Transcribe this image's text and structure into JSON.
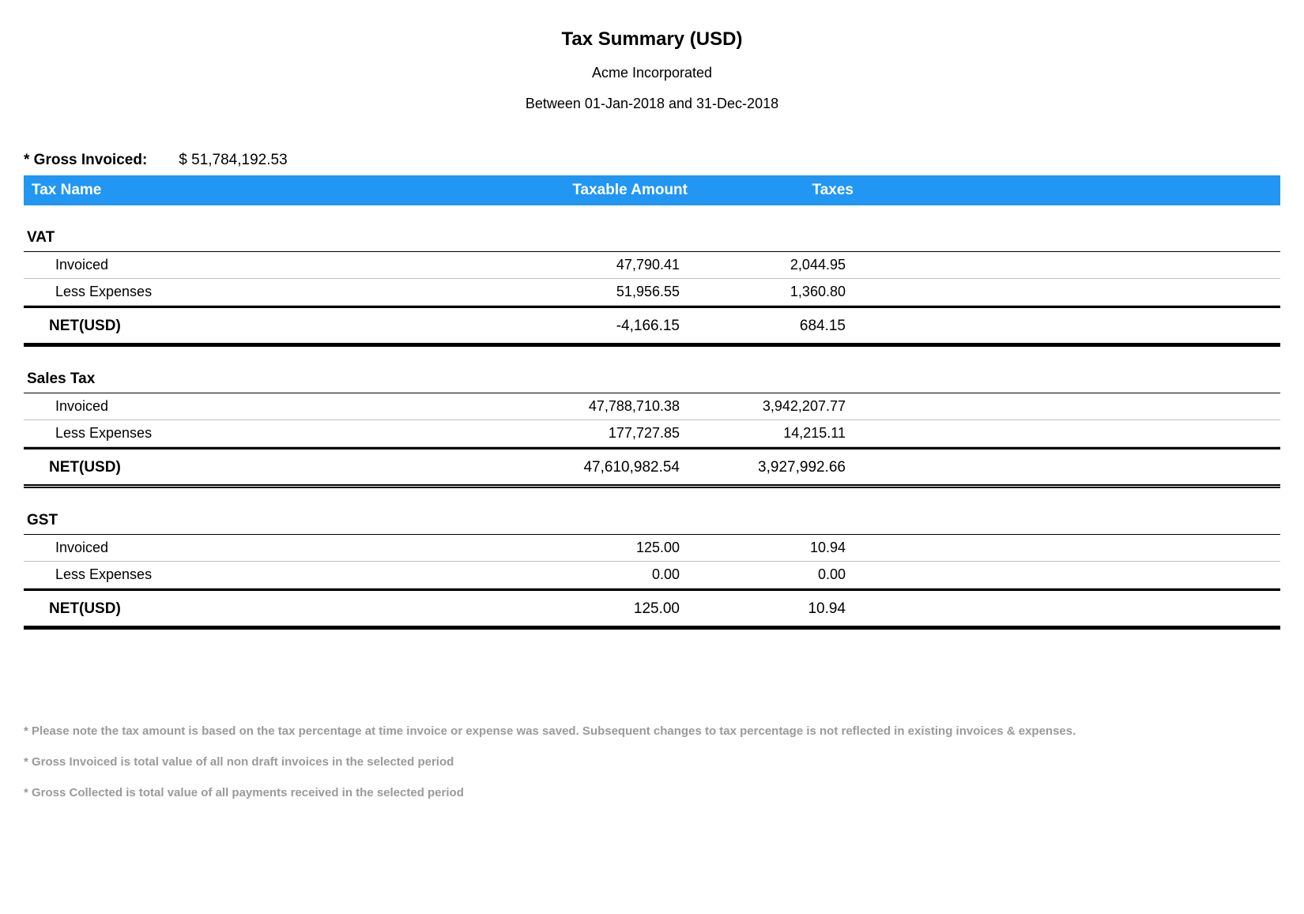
{
  "header": {
    "title": "Tax Summary (USD)",
    "company": "Acme Incorporated",
    "period": "Between 01-Jan-2018 and 31-Dec-2018"
  },
  "gross": {
    "label": "* Gross Invoiced:",
    "value": "$ 51,784,192.53"
  },
  "columns": {
    "tax_name": "Tax Name",
    "taxable_amount": "Taxable Amount",
    "taxes": "Taxes"
  },
  "row_labels": {
    "invoiced": "Invoiced",
    "less_expenses": "Less Expenses",
    "net": "NET(USD)"
  },
  "sections": [
    {
      "title": "VAT",
      "invoiced": {
        "amount": "47,790.41",
        "taxes": "2,044.95"
      },
      "less_expenses": {
        "amount": "51,956.55",
        "taxes": "1,360.80"
      },
      "net": {
        "amount": "-4,166.15",
        "taxes": "684.15"
      },
      "net_style": "solid"
    },
    {
      "title": "Sales Tax",
      "invoiced": {
        "amount": "47,788,710.38",
        "taxes": "3,942,207.77"
      },
      "less_expenses": {
        "amount": "177,727.85",
        "taxes": "14,215.11"
      },
      "net": {
        "amount": "47,610,982.54",
        "taxes": "3,927,992.66"
      },
      "net_style": "double"
    },
    {
      "title": "GST",
      "invoiced": {
        "amount": "125.00",
        "taxes": "10.94"
      },
      "less_expenses": {
        "amount": "0.00",
        "taxes": "0.00"
      },
      "net": {
        "amount": "125.00",
        "taxes": "10.94"
      },
      "net_style": "solid"
    }
  ],
  "footnotes": [
    "* Please note the tax amount is based on the tax percentage at time invoice or expense was saved. Subsequent changes to tax percentage is not reflected in existing invoices & expenses.",
    "* Gross Invoiced is total value of all non draft invoices in the selected period",
    "* Gross Collected is total value of all payments received in the selected period"
  ],
  "style": {
    "header_bg": "#2196f3",
    "header_fg": "#ffffff",
    "page_bg": "#ffffff",
    "text_color": "#000000",
    "footnote_color": "#9a9a9a",
    "row_border": "#c0c0c0",
    "title_fontsize": 24,
    "body_fontsize": 18,
    "footnote_fontsize": 15
  }
}
